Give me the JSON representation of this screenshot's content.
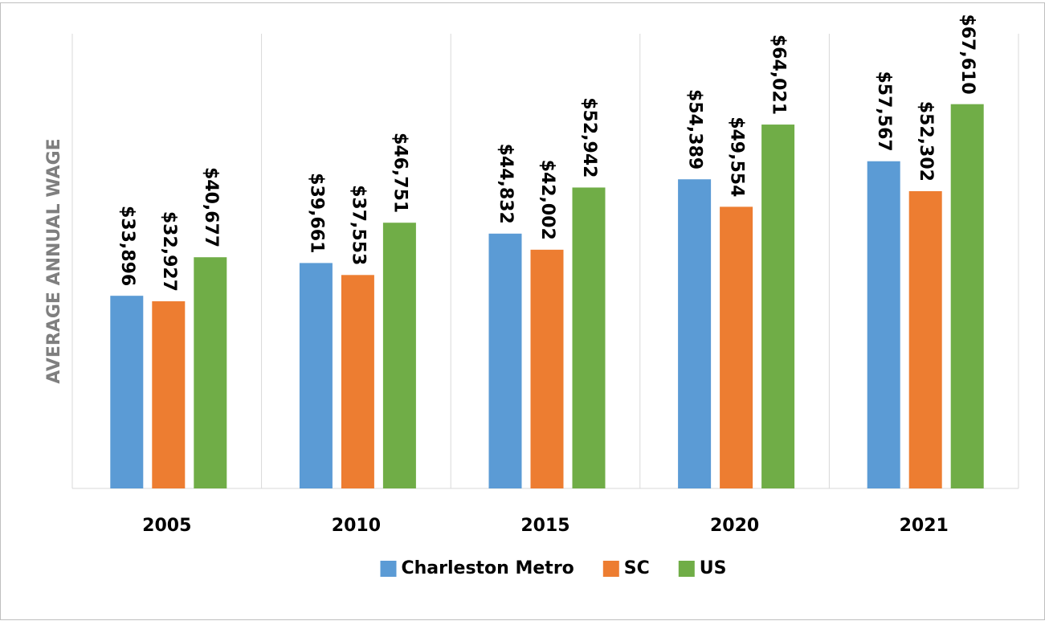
{
  "chart_data": {
    "type": "bar",
    "y_label": "AVERAGE ANNUAL WAGE",
    "categories": [
      "2005",
      "2010",
      "2015",
      "2020",
      "2021"
    ],
    "series": [
      {
        "name": "Charleston Metro",
        "color": "#5b9bd5",
        "values": [
          33896,
          39661,
          44832,
          54389,
          57567
        ],
        "value_labels": [
          "$33,896",
          "$39,661",
          "$44,832",
          "$54,389",
          "$57,567"
        ]
      },
      {
        "name": "SC",
        "color": "#ed7d31",
        "values": [
          32927,
          37553,
          42002,
          49554,
          52302
        ],
        "value_labels": [
          "$32,927",
          "$37,553",
          "$42,002",
          "$49,554",
          "$52,302"
        ]
      },
      {
        "name": "US",
        "color": "#70ad47",
        "values": [
          40677,
          46751,
          52942,
          64021,
          67610
        ],
        "value_labels": [
          "$40,677",
          "$46,751",
          "$52,942",
          "$64,021",
          "$67,610"
        ]
      }
    ],
    "ylim": [
      0,
      80000
    ],
    "legend": "bottom"
  }
}
